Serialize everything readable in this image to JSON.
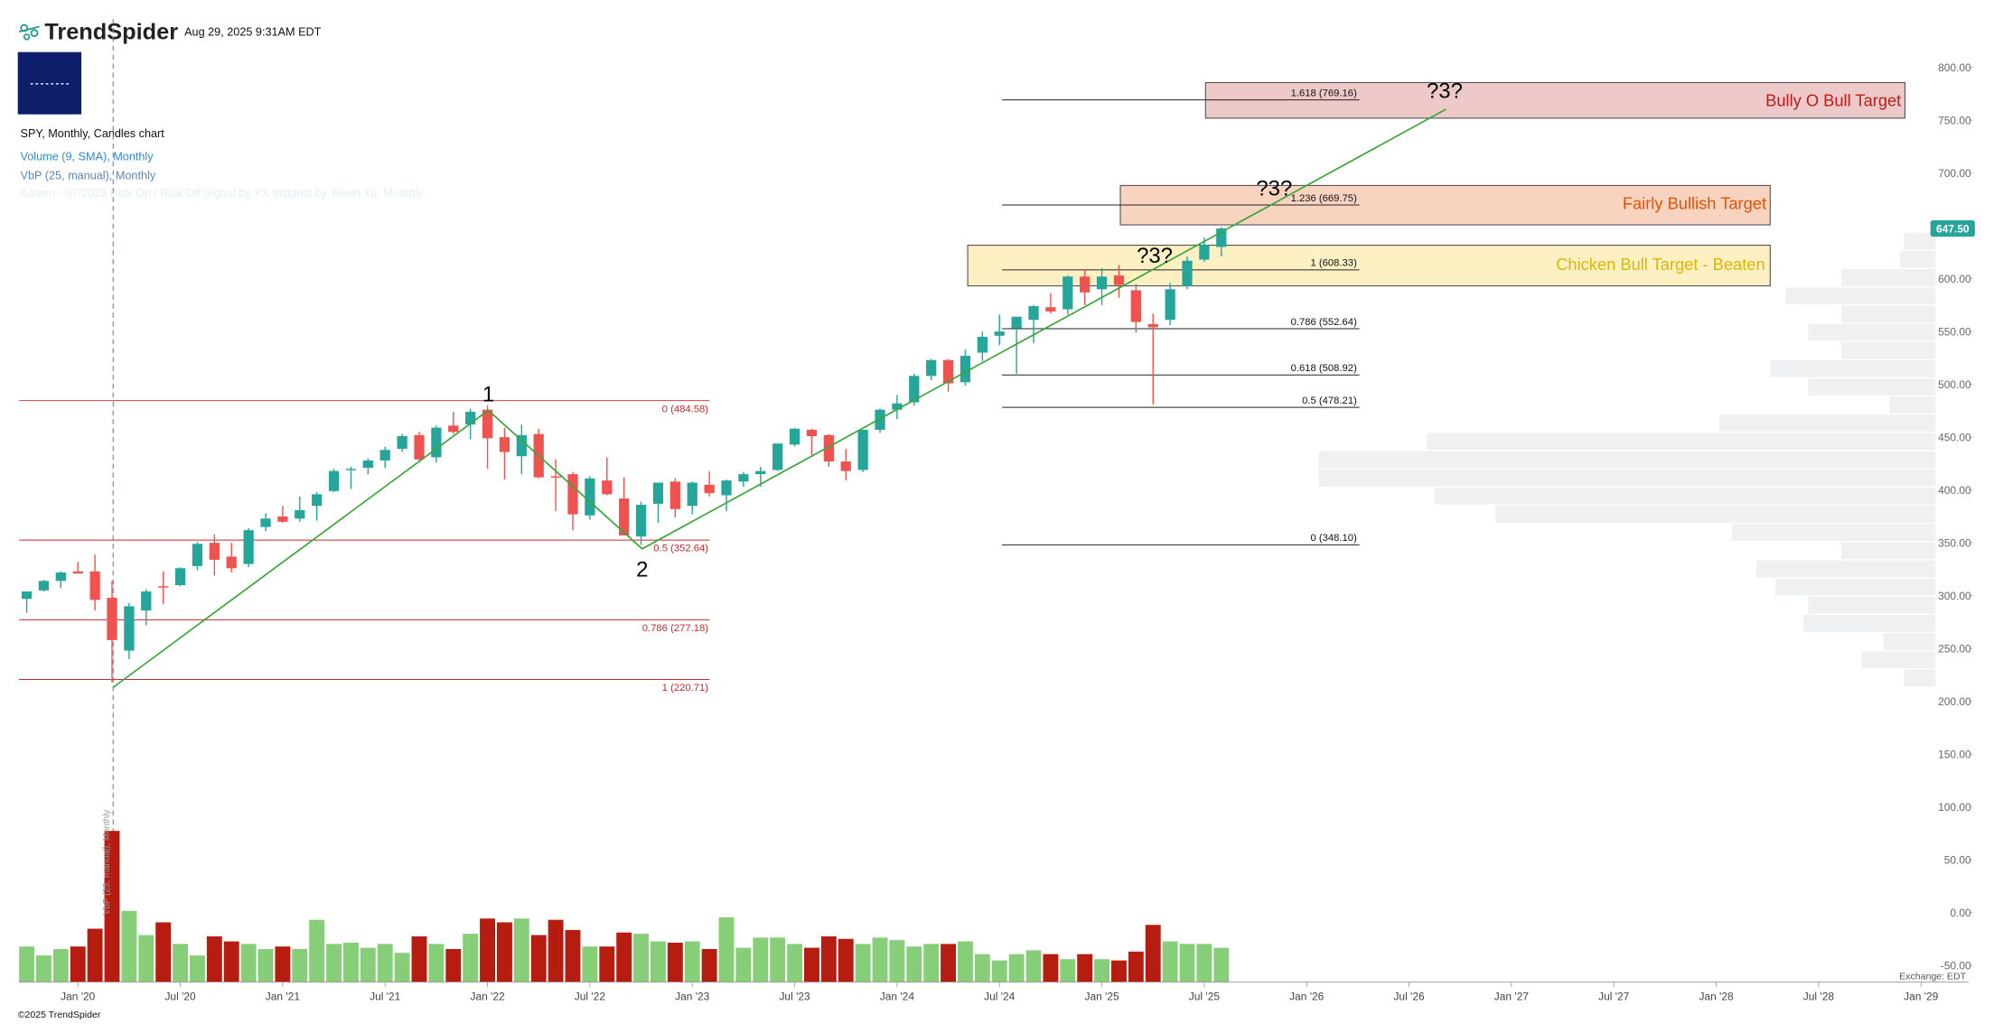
{
  "header": {
    "logo": "TrendSpider",
    "timestamp": "Aug 29, 2025 9:31AM EDT",
    "chart_label": "SPY, Monthly, Candles chart",
    "indicators": [
      "Volume (9, SMA), Monthly",
      "VbP (25, manual), Monthly",
      "Kaizen - 07/2025 Risk On / Risk Off Signal by YX Insights by Yiwen Yu, Monthly"
    ]
  },
  "chart_data": {
    "type": "candlestick",
    "x": [
      "2019-10",
      "2019-11",
      "2019-12",
      "2020-01",
      "2020-02",
      "2020-03",
      "2020-04",
      "2020-05",
      "2020-06",
      "2020-07",
      "2020-08",
      "2020-09",
      "2020-10",
      "2020-11",
      "2020-12",
      "2021-01",
      "2021-02",
      "2021-03",
      "2021-04",
      "2021-05",
      "2021-06",
      "2021-07",
      "2021-08",
      "2021-09",
      "2021-10",
      "2021-11",
      "2021-12",
      "2022-01",
      "2022-02",
      "2022-03",
      "2022-04",
      "2022-05",
      "2022-06",
      "2022-07",
      "2022-08",
      "2022-09",
      "2022-10",
      "2022-11",
      "2022-12",
      "2023-01",
      "2023-02",
      "2023-03",
      "2023-04",
      "2023-05",
      "2023-06",
      "2023-07",
      "2023-08",
      "2023-09",
      "2023-10",
      "2023-11",
      "2023-12",
      "2024-01",
      "2024-02",
      "2024-03",
      "2024-04",
      "2024-05",
      "2024-06",
      "2024-07",
      "2024-08",
      "2024-09",
      "2024-10",
      "2024-11",
      "2024-12",
      "2025-01",
      "2025-02",
      "2025-03",
      "2025-04",
      "2025-05",
      "2025-06",
      "2025-07",
      "2025-08"
    ],
    "open": [
      297,
      305,
      314,
      323,
      323,
      298,
      248,
      286,
      309,
      310,
      328,
      350,
      337,
      330,
      365,
      375,
      373,
      385,
      399,
      420,
      421,
      428,
      439,
      452,
      431,
      461,
      462,
      476,
      450,
      432,
      453,
      413,
      415,
      376,
      409,
      392,
      356,
      387,
      408,
      385,
      405,
      395,
      408,
      415,
      419,
      443,
      457,
      452,
      427,
      419,
      457,
      476,
      483,
      508,
      523,
      502,
      530,
      546,
      553,
      561,
      573,
      571,
      602,
      590,
      603,
      589,
      557,
      561,
      593,
      618,
      630
    ],
    "high": [
      304,
      315,
      323,
      332,
      339,
      314,
      293,
      306,
      323,
      327,
      351,
      358,
      350,
      364,
      378,
      385,
      394,
      398,
      420,
      422,
      430,
      441,
      453,
      455,
      461,
      474,
      477,
      480,
      459,
      462,
      458,
      429,
      417,
      413,
      431,
      412,
      389,
      407,
      411,
      408,
      418,
      410,
      417,
      422,
      444,
      459,
      458,
      453,
      439,
      457,
      477,
      490,
      510,
      524,
      524,
      533,
      550,
      566,
      563,
      575,
      586,
      603,
      609,
      610,
      613,
      595,
      567,
      596,
      621,
      639,
      649
    ],
    "low": [
      284,
      304,
      307,
      321,
      286,
      218,
      240,
      272,
      292,
      309,
      324,
      319,
      322,
      327,
      361,
      369,
      370,
      371,
      398,
      401,
      415,
      421,
      436,
      428,
      426,
      453,
      448,
      420,
      410,
      415,
      411,
      380,
      362,
      372,
      395,
      357,
      348,
      369,
      374,
      377,
      394,
      380,
      403,
      403,
      418,
      441,
      433,
      422,
      409,
      417,
      454,
      467,
      480,
      504,
      493,
      499,
      522,
      537,
      510,
      539,
      567,
      566,
      575,
      575,
      582,
      549,
      481,
      556,
      590,
      616,
      621
    ],
    "close": [
      304,
      314,
      322,
      321,
      296,
      258,
      290,
      304,
      308,
      326,
      349,
      334,
      326,
      362,
      373,
      370,
      381,
      396,
      418,
      420,
      428,
      438,
      451,
      429,
      459,
      455,
      474,
      449,
      436,
      452,
      412,
      412,
      377,
      411,
      396,
      357,
      386,
      407,
      382,
      407,
      397,
      409,
      415,
      418,
      444,
      458,
      451,
      427,
      418,
      457,
      476,
      482,
      508,
      523,
      501,
      527,
      545,
      550,
      564,
      574,
      569,
      602,
      587,
      602,
      594,
      559,
      554,
      590,
      617,
      632,
      647.5
    ],
    "volume": [
      1120,
      840,
      1040,
      1120,
      1680,
      4760,
      2240,
      1480,
      1880,
      1200,
      840,
      1440,
      1280,
      1200,
      1040,
      1120,
      1040,
      1960,
      1200,
      1240,
      1080,
      1200,
      920,
      1440,
      1200,
      1040,
      1520,
      2000,
      1880,
      2000,
      1480,
      1960,
      1640,
      1120,
      1120,
      1560,
      1520,
      1280,
      1240,
      1280,
      1040,
      2040,
      1080,
      1400,
      1400,
      1200,
      1080,
      1440,
      1360,
      1200,
      1400,
      1320,
      1120,
      1200,
      1200,
      1280,
      880,
      680,
      880,
      1000,
      880,
      720,
      880,
      720,
      680,
      960,
      1800,
      1280,
      1200,
      1200,
      1080
    ],
    "up_color": "#26a69a",
    "down_color": "#ef5350",
    "volume_up_color": "#86cf78",
    "volume_down_color": "#b71c10",
    "ylim": [
      -50,
      800
    ],
    "yticks": [
      {
        "value": 800,
        "label": "800.00"
      },
      {
        "value": 750,
        "label": "750.00"
      },
      {
        "value": 700,
        "label": "700.00"
      },
      {
        "value": 650,
        "label": "650.00"
      },
      {
        "value": 600,
        "label": "600.00"
      },
      {
        "value": 550,
        "label": "550.00"
      },
      {
        "value": 500,
        "label": "500.00"
      },
      {
        "value": 450,
        "label": "450.00"
      },
      {
        "value": 400,
        "label": "400.00"
      },
      {
        "value": 350,
        "label": "350.00"
      },
      {
        "value": 300,
        "label": "300.00"
      },
      {
        "value": 250,
        "label": "250.00"
      },
      {
        "value": 200,
        "label": "200.00"
      },
      {
        "value": 150,
        "label": "150.00"
      },
      {
        "value": 100,
        "label": "100.00"
      },
      {
        "value": 50,
        "label": "50.00"
      },
      {
        "value": 0,
        "label": "0.00"
      },
      {
        "value": -50,
        "label": "-50.00"
      }
    ],
    "xticks": [
      {
        "value": "2020-01",
        "label": "Jan '20"
      },
      {
        "value": "2020-07",
        "label": "Jul '20"
      },
      {
        "value": "2021-01",
        "label": "Jan '21"
      },
      {
        "value": "2021-07",
        "label": "Jul '21"
      },
      {
        "value": "2022-01",
        "label": "Jan '22"
      },
      {
        "value": "2022-07",
        "label": "Jul '22"
      },
      {
        "value": "2023-01",
        "label": "Jan '23"
      },
      {
        "value": "2023-07",
        "label": "Jul '23"
      },
      {
        "value": "2024-01",
        "label": "Jan '24"
      },
      {
        "value": "2024-07",
        "label": "Jul '24"
      },
      {
        "value": "2025-01",
        "label": "Jan '25"
      },
      {
        "value": "2025-07",
        "label": "Jul '25"
      },
      {
        "value": "2026-01",
        "label": "Jan '26"
      },
      {
        "value": "2026-07",
        "label": "Jul '26"
      },
      {
        "value": "2027-01",
        "label": "Jan '27"
      },
      {
        "value": "2027-07",
        "label": "Jul '27"
      },
      {
        "value": "2028-01",
        "label": "Jan '28"
      },
      {
        "value": "2028-07",
        "label": "Jul '28"
      },
      {
        "value": "2029-01",
        "label": "Jan '29"
      }
    ],
    "last_price": {
      "value": 647.5,
      "label": "647.50"
    },
    "fib_left": [
      {
        "value": 484.58,
        "label": "0 (484.58)"
      },
      {
        "value": 352.64,
        "label": "0.5 (352.64)"
      },
      {
        "value": 277.18,
        "label": "0.786 (277.18)"
      },
      {
        "value": 220.71,
        "label": "1 (220.71)"
      }
    ],
    "fib_right": [
      {
        "value": 769.16,
        "label": "1.618 (769.16)"
      },
      {
        "value": 669.75,
        "label": "1.236 (669.75)"
      },
      {
        "value": 608.33,
        "label": "1 (608.33)"
      },
      {
        "value": 552.64,
        "label": "0.786 (552.64)"
      },
      {
        "value": 508.92,
        "label": "0.618 (508.92)"
      },
      {
        "value": 478.21,
        "label": "0.5 (478.21)"
      },
      {
        "value": 348.1,
        "label": "0 (348.10)"
      }
    ],
    "vbp": {
      "bins": [
        213.5,
        230.7,
        247.9,
        265.2,
        282.4,
        299.6,
        316.8,
        334.0,
        351.3,
        368.5,
        385.7,
        402.9,
        420.1,
        437.4,
        454.6,
        471.8,
        489.0,
        506.2,
        523.5,
        540.7,
        557.9,
        575.1,
        592.3,
        609.6,
        626.8,
        644.0
      ],
      "values": [
        25,
        58,
        41,
        104,
        100,
        126,
        141,
        74,
        160,
        346,
        394,
        485,
        485,
        400,
        170,
        36,
        100,
        130,
        74,
        100,
        74,
        118,
        74,
        28,
        25
      ],
      "color": "#eef0f1"
    },
    "wave_labels": [
      "1",
      "2"
    ],
    "question_marks": [
      "?3?",
      "?3?",
      "?3?"
    ],
    "targets": [
      "Bully O Bull Target",
      "Fairly Bullish Target",
      "Chicken Bull Target - Beaten"
    ]
  },
  "footer": {
    "copyright": "©2025 TrendSpider",
    "exchange": "Exchange: EDT"
  }
}
